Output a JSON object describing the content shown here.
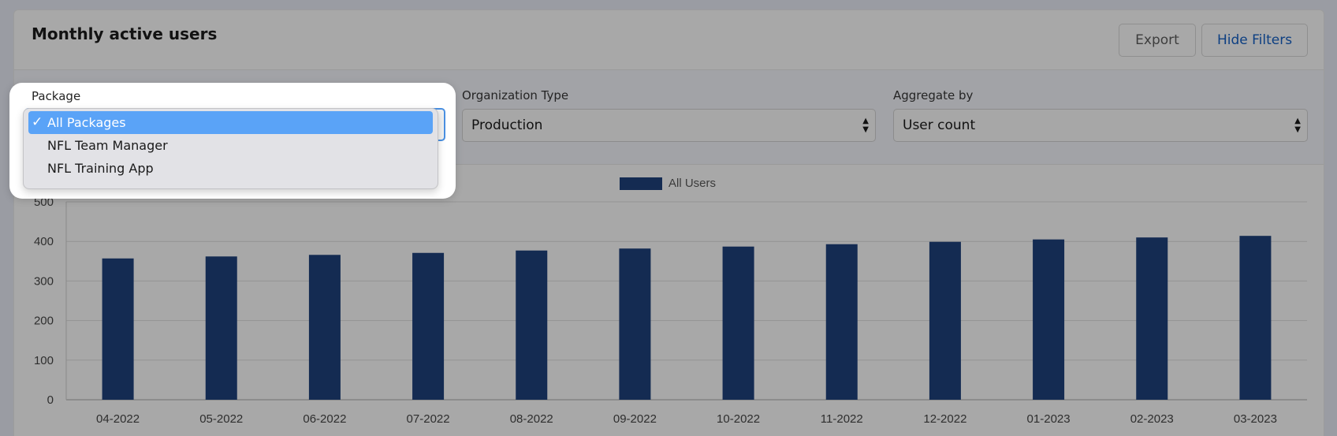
{
  "header": {
    "title": "Monthly active users",
    "export_label": "Export",
    "hide_filters_label": "Hide Filters"
  },
  "filters": {
    "package": {
      "label": "Package",
      "options": [
        "All Packages",
        "NFL Team Manager",
        "NFL Training App"
      ],
      "selected": "All Packages",
      "check": "✓"
    },
    "organization_type": {
      "label": "Organization Type",
      "value": "Production"
    },
    "aggregate_by": {
      "label": "Aggregate by",
      "value": "User count"
    }
  },
  "chart_data": {
    "type": "bar",
    "categories": [
      "04-2022",
      "05-2022",
      "06-2022",
      "07-2022",
      "08-2022",
      "09-2022",
      "10-2022",
      "11-2022",
      "12-2022",
      "01-2023",
      "02-2023",
      "03-2023"
    ],
    "series": [
      {
        "name": "All Users",
        "values": [
          357,
          362,
          366,
          371,
          377,
          382,
          387,
          393,
          399,
          405,
          410,
          414
        ],
        "color": "#142b52"
      }
    ],
    "ylim": [
      0,
      500
    ],
    "yticks": [
      0,
      100,
      200,
      300,
      400,
      500
    ],
    "grid": true,
    "legend": "top-center"
  }
}
